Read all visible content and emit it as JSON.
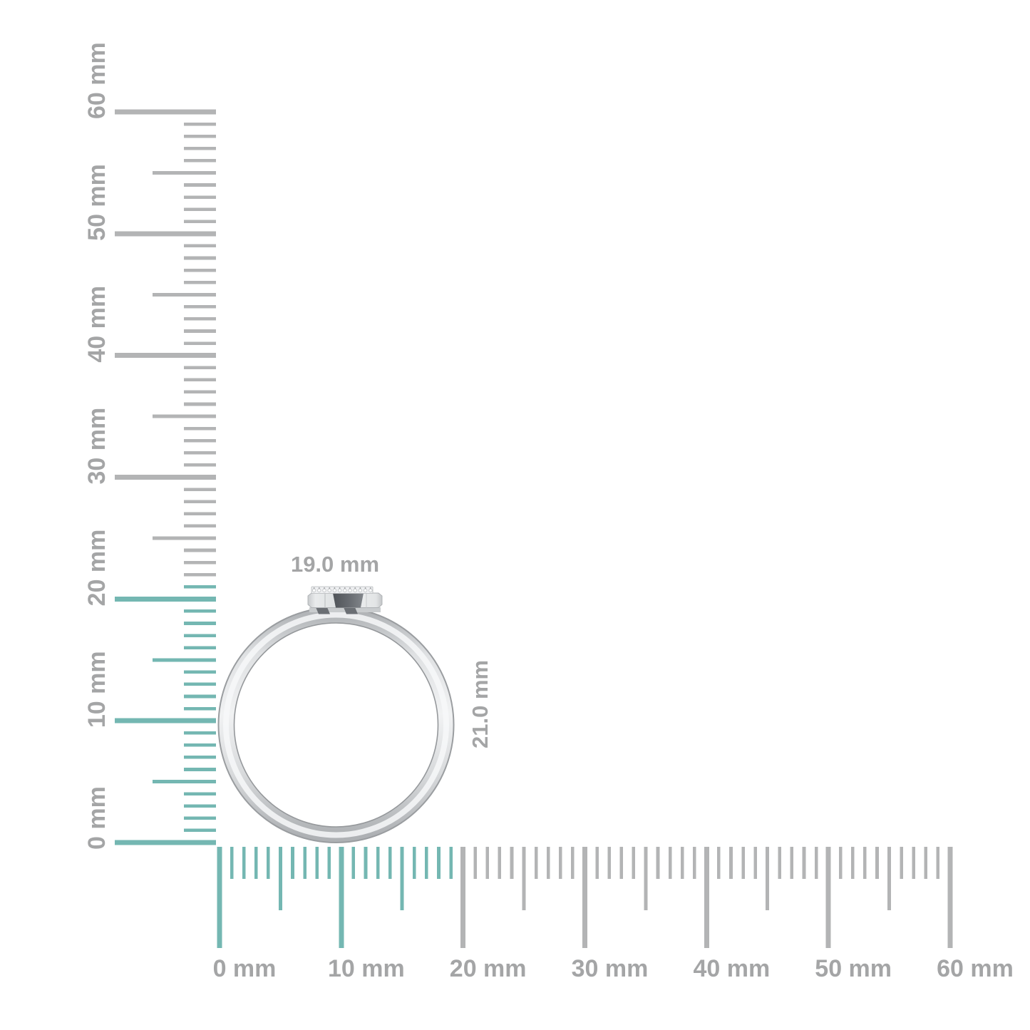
{
  "dimensions": {
    "width_label": "19.0 mm",
    "height_label": "21.0 mm"
  },
  "rulers": {
    "unit": "mm",
    "min_mm": 0,
    "max_mm": 60,
    "tick_step_mm": 1,
    "half_tick_step_mm": 5,
    "major_tick_step_mm": 10,
    "tick_labels": [
      "0 mm",
      "10 mm",
      "20 mm",
      "30 mm",
      "40 mm",
      "50 mm",
      "60 mm"
    ],
    "vertical": {
      "highlighted_span_mm": 21
    },
    "horizontal": {
      "highlighted_span_mm": 19
    }
  },
  "colors": {
    "highlight_teal": "#74b7b2",
    "tick_gray": "#b3b4b5",
    "label_gray": "#a4a5a6",
    "background": "#ffffff"
  }
}
